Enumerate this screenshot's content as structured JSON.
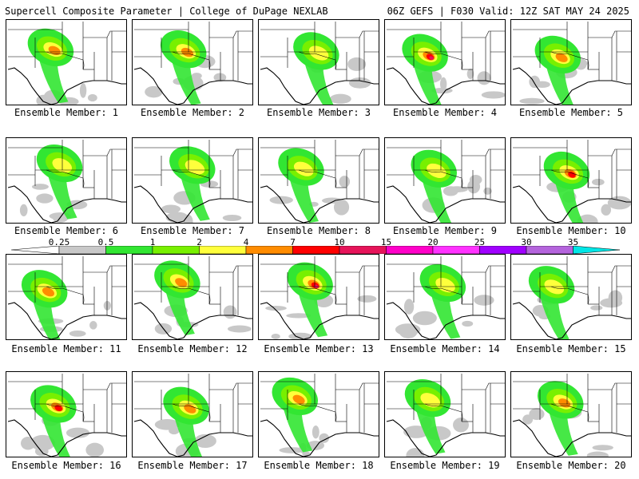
{
  "header": {
    "title_left": "Supercell Composite Parameter | College of DuPage NEXLAB",
    "title_right": "06Z GEFS | F030 Valid: 12Z SAT MAY 24 2025"
  },
  "members": [
    "Ensemble Member: 1",
    "Ensemble Member: 2",
    "Ensemble Member: 3",
    "Ensemble Member: 4",
    "Ensemble Member: 5",
    "Ensemble Member: 6",
    "Ensemble Member: 7",
    "Ensemble Member: 8",
    "Ensemble Member: 9",
    "Ensemble Member: 10",
    "Ensemble Member: 11",
    "Ensemble Member: 12",
    "Ensemble Member: 13",
    "Ensemble Member: 14",
    "Ensemble Member: 15",
    "Ensemble Member: 16",
    "Ensemble Member: 17",
    "Ensemble Member: 18",
    "Ensemble Member: 19",
    "Ensemble Member: 20"
  ],
  "colorbar": {
    "labels": [
      "0.25",
      "0.5",
      "1",
      "2",
      "4",
      "7",
      "10",
      "15",
      "20",
      "25",
      "30",
      "35"
    ],
    "colors": [
      "#c8c8c8",
      "#32e632",
      "#78f000",
      "#ffff3c",
      "#ff8c00",
      "#ff0000",
      "#e6145a",
      "#ff00c8",
      "#ff32ff",
      "#a000ff",
      "#b464dc",
      "#00e6e6"
    ]
  },
  "member_peaks": {
    "1": "4",
    "2": "4",
    "3": "2",
    "4": "10",
    "5": "4",
    "6": "2",
    "7": "2",
    "8": "2",
    "9": "2",
    "10": "7",
    "11": "4",
    "12": "4",
    "13": "10",
    "14": "2",
    "15": "2",
    "16": "7",
    "17": "4",
    "18": "4",
    "19": "2",
    "20": "4"
  }
}
